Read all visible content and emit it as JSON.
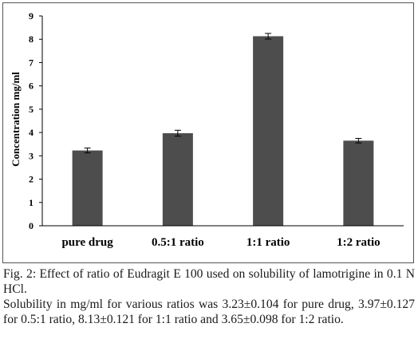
{
  "chart_data": {
    "type": "bar",
    "title": "",
    "xlabel": "",
    "ylabel": "Concentration mg/ml",
    "categories": [
      "pure drug",
      "0.5:1 ratio",
      "1:1 ratio",
      "1:2 ratio"
    ],
    "values": [
      3.23,
      3.97,
      8.13,
      3.65
    ],
    "errors": [
      0.104,
      0.127,
      0.121,
      0.098
    ],
    "ylim": [
      0,
      9
    ],
    "yticks": [
      "0",
      "1",
      "2",
      "3",
      "4",
      "5",
      "6",
      "7",
      "8",
      "9"
    ],
    "error_bars": true,
    "grid": false,
    "legend": "none",
    "bar_color": "#4d4d4d"
  },
  "caption": {
    "line1": "Fig. 2: Effect of ratio of Eudragit E 100 used on solubility of lamotrigine in 0.1 N HCl.",
    "line2": "Solubility in mg/ml for various ratios was 3.23±0.104 for pure drug, 3.97±0.127 for 0.5:1 ratio, 8.13±0.121 for 1:1 ratio and 3.65±0.098 for 1:2 ratio."
  }
}
